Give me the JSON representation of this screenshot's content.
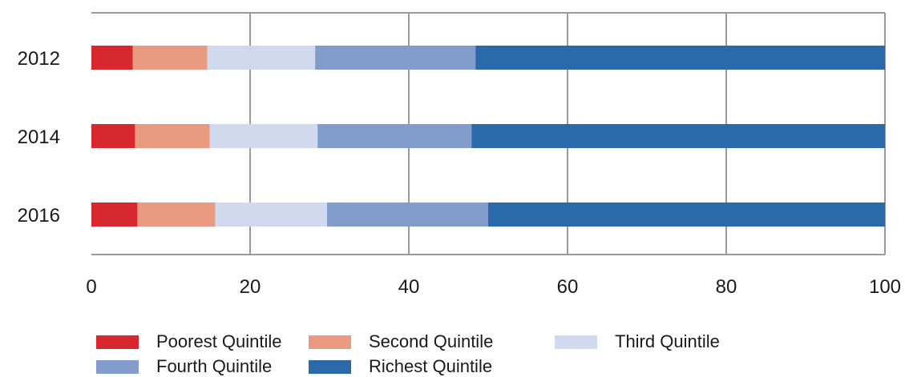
{
  "chart_data": {
    "type": "bar",
    "orientation": "horizontal",
    "stacked": true,
    "categories": [
      "2012",
      "2014",
      "2016"
    ],
    "series": [
      {
        "name": "Poorest Quintile",
        "color": "#d7282f",
        "values": [
          5.2,
          5.5,
          5.8
        ]
      },
      {
        "name": "Second Quintile",
        "color": "#e99a80",
        "values": [
          9.4,
          9.4,
          9.8
        ]
      },
      {
        "name": "Third Quintile",
        "color": "#d1d9ee",
        "values": [
          13.6,
          13.6,
          14.1
        ]
      },
      {
        "name": "Fourth Quintile",
        "color": "#829ccb",
        "values": [
          20.2,
          19.4,
          20.3
        ]
      },
      {
        "name": "Richest Quintile",
        "color": "#2a6aab",
        "values": [
          51.6,
          52.1,
          50.0
        ]
      }
    ],
    "xlim": [
      0,
      100
    ],
    "xticks": [
      "0",
      "20",
      "40",
      "60",
      "80",
      "100"
    ],
    "grid": true,
    "legend_position": "bottom"
  }
}
